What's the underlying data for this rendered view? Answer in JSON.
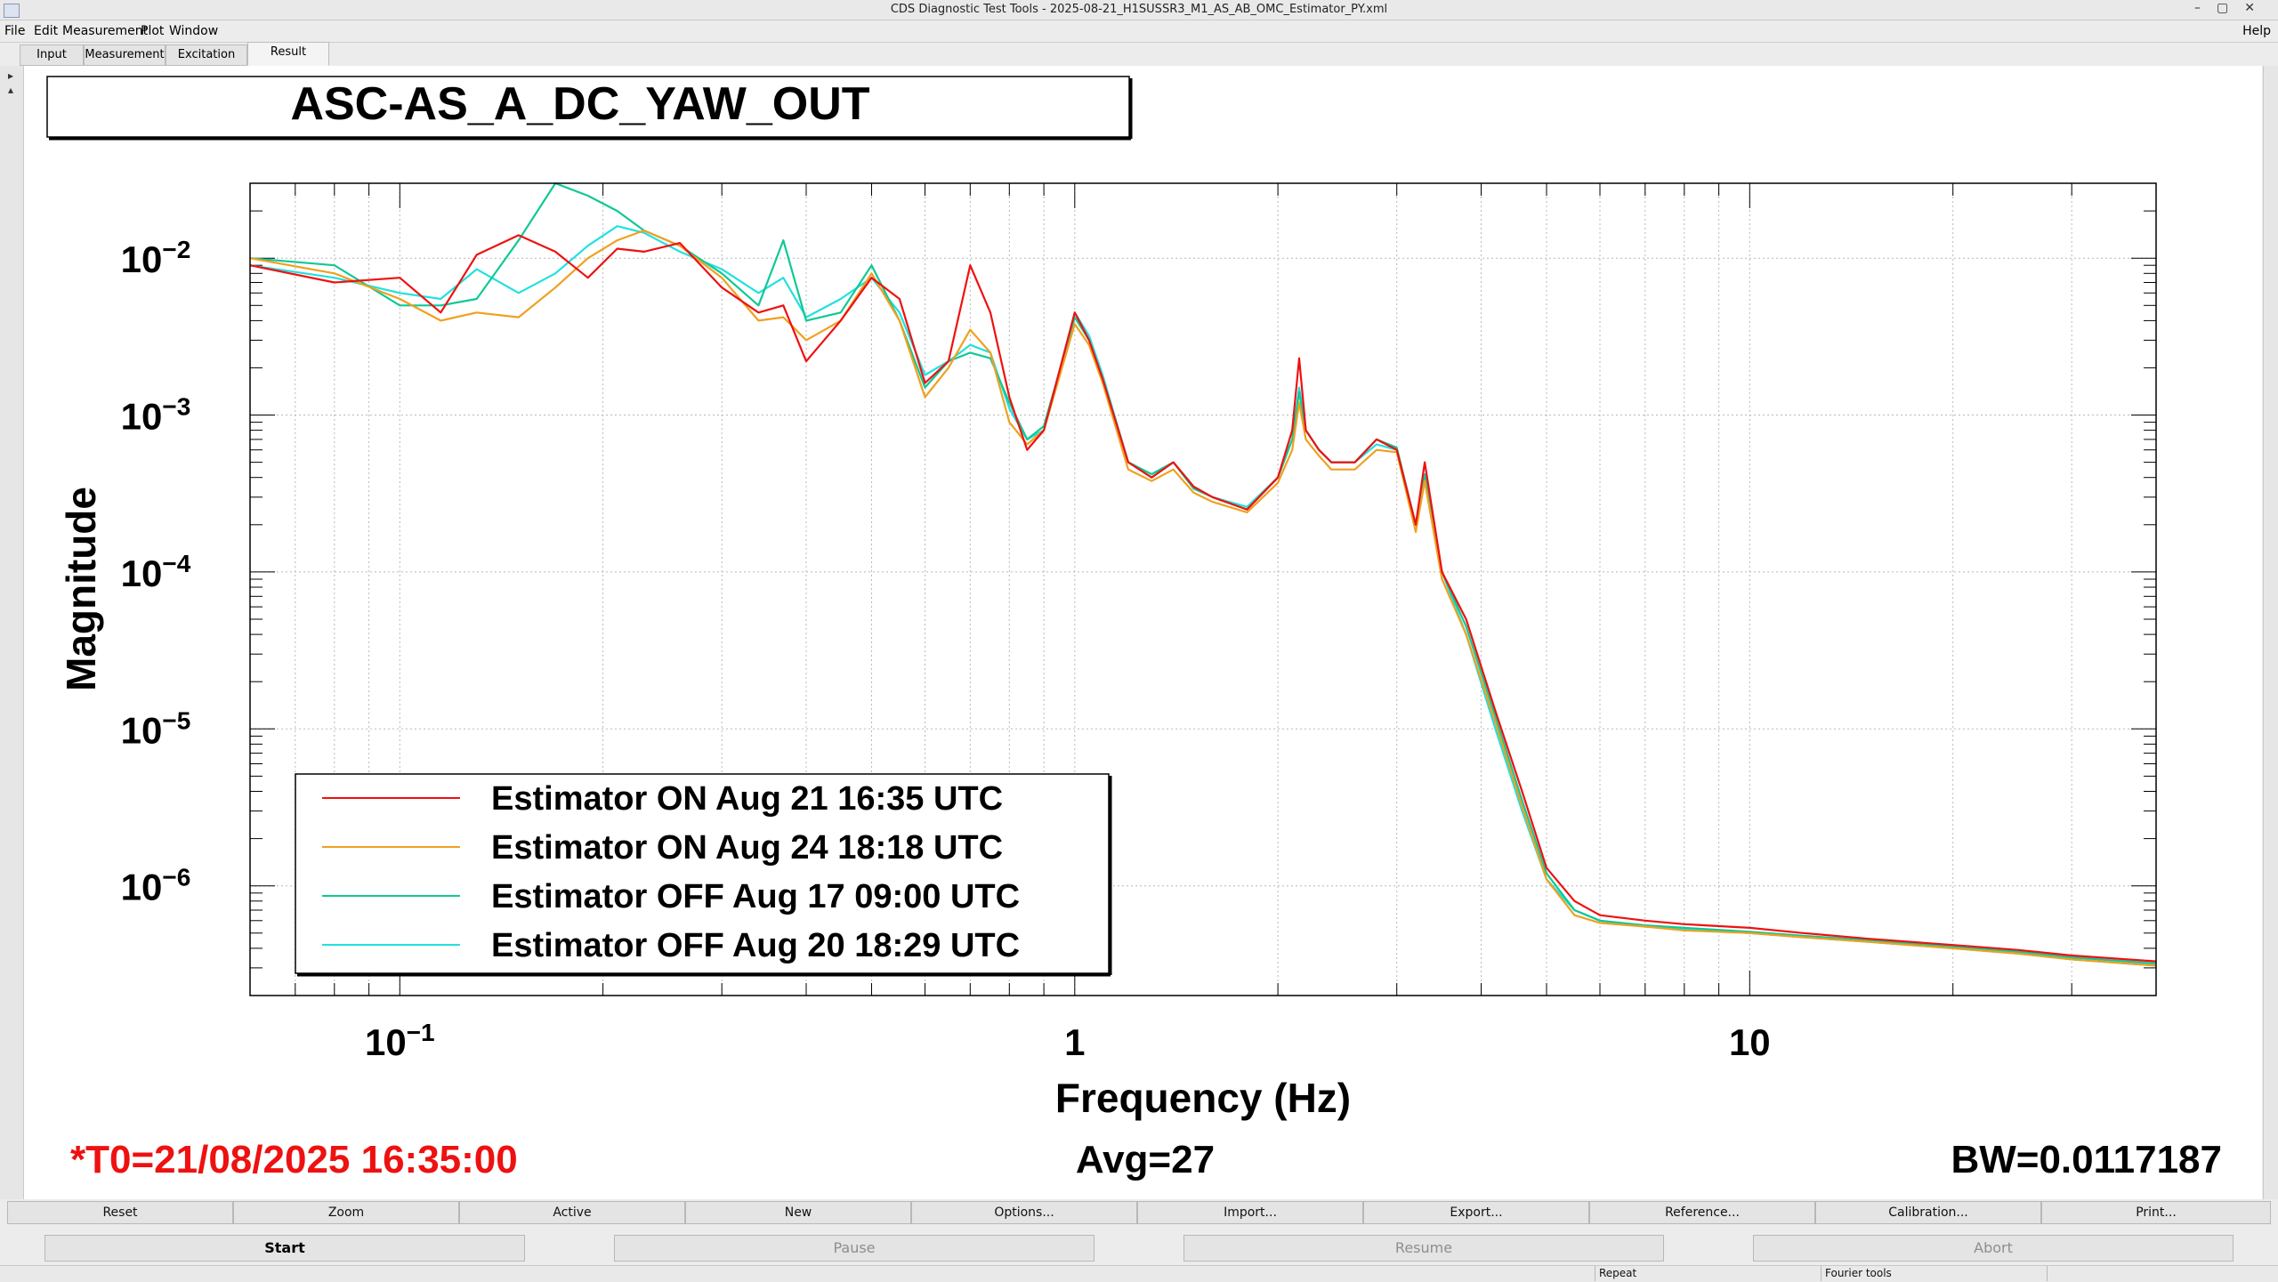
{
  "window": {
    "title": "CDS Diagnostic Test Tools - 2025-08-21_H1SUSSR3_M1_AS_AB_OMC_Estimator_PY.xml",
    "controls": [
      "–",
      "▢",
      "✕"
    ]
  },
  "menu": {
    "file": "File",
    "edit": "Edit",
    "measurement": "Measurement",
    "plot": "Plot",
    "window": "Window",
    "help": "Help"
  },
  "tabs": {
    "input": "Input",
    "measurement": "Measurement",
    "excitation": "Excitation",
    "result": "Result"
  },
  "plot": {
    "title": "ASC-AS_A_DC_YAW_OUT",
    "ylabel": "Magnitude",
    "xlabel": "Frequency (Hz)",
    "t0": "*T0=21/08/2025 16:35:00",
    "avg": "Avg=27",
    "bw": "BW=0.0117187",
    "t0_color": "#ee1111"
  },
  "chart_data": {
    "type": "line",
    "xscale": "log",
    "yscale": "log",
    "xlim": [
      0.06,
      40
    ],
    "ylim": [
      2e-07,
      0.03
    ],
    "grid": true,
    "legend_position": "bottom-left",
    "x_ticks": [
      {
        "value": 0.1,
        "base": "10",
        "exp": "−1"
      },
      {
        "value": 1,
        "base": "1",
        "exp": ""
      },
      {
        "value": 10,
        "base": "10",
        "exp": ""
      }
    ],
    "y_ticks": [
      {
        "value": 0.01,
        "base": "10",
        "exp": "−2"
      },
      {
        "value": 0.001,
        "base": "10",
        "exp": "−3"
      },
      {
        "value": 0.0001,
        "base": "10",
        "exp": "−4"
      },
      {
        "value": 1e-05,
        "base": "10",
        "exp": "−5"
      },
      {
        "value": 1e-06,
        "base": "10",
        "exp": "−6"
      }
    ],
    "series": [
      {
        "name": "Estimator OFF Aug 20 18:29 UTC",
        "color": "#22e0e0",
        "x": [
          0.06,
          0.08,
          0.1,
          0.115,
          0.13,
          0.15,
          0.17,
          0.19,
          0.21,
          0.23,
          0.26,
          0.3,
          0.34,
          0.37,
          0.4,
          0.45,
          0.5,
          0.55,
          0.6,
          0.65,
          0.7,
          0.75,
          0.8,
          0.85,
          0.9,
          1.0,
          1.05,
          1.1,
          1.2,
          1.3,
          1.4,
          1.5,
          1.6,
          1.8,
          2.0,
          2.1,
          2.15,
          2.2,
          2.3,
          2.4,
          2.6,
          2.8,
          3.0,
          3.2,
          3.3,
          3.5,
          3.8,
          4.2,
          4.6,
          5.0,
          5.5,
          6.0,
          7,
          8,
          10,
          12,
          15,
          20,
          25,
          30,
          40
        ],
        "y": [
          0.009,
          0.0075,
          0.006,
          0.0055,
          0.0085,
          0.006,
          0.008,
          0.012,
          0.016,
          0.0145,
          0.011,
          0.0085,
          0.006,
          0.0075,
          0.0042,
          0.0055,
          0.0075,
          0.0045,
          0.0018,
          0.0022,
          0.0028,
          0.0025,
          0.0011,
          0.0007,
          0.0008,
          0.0045,
          0.0032,
          0.0018,
          0.0005,
          0.0004,
          0.0005,
          0.00035,
          0.0003,
          0.00026,
          0.0004,
          0.0007,
          0.0015,
          0.0008,
          0.0006,
          0.0005,
          0.0005,
          0.00065,
          0.0006,
          0.0002,
          0.0004,
          0.0001,
          4e-05,
          1e-05,
          3e-06,
          1.1e-06,
          7e-07,
          6e-07,
          5.5e-07,
          5.3e-07,
          5e-07,
          4.7e-07,
          4.4e-07,
          4e-07,
          3.7e-07,
          3.4e-07,
          3.1e-07
        ]
      },
      {
        "name": "Estimator OFF Aug 17 09:00 UTC",
        "color": "#10c896",
        "x": [
          0.06,
          0.08,
          0.1,
          0.115,
          0.13,
          0.15,
          0.17,
          0.19,
          0.21,
          0.23,
          0.26,
          0.3,
          0.34,
          0.37,
          0.4,
          0.45,
          0.5,
          0.55,
          0.6,
          0.65,
          0.7,
          0.75,
          0.8,
          0.85,
          0.9,
          1.0,
          1.05,
          1.1,
          1.2,
          1.3,
          1.4,
          1.5,
          1.6,
          1.8,
          2.0,
          2.1,
          2.15,
          2.2,
          2.3,
          2.4,
          2.6,
          2.8,
          3.0,
          3.2,
          3.3,
          3.5,
          3.8,
          4.2,
          4.6,
          5.0,
          5.5,
          6.0,
          7,
          8,
          10,
          12,
          15,
          20,
          25,
          30,
          40
        ],
        "y": [
          0.01,
          0.009,
          0.005,
          0.005,
          0.0055,
          0.013,
          0.03,
          0.025,
          0.02,
          0.015,
          0.012,
          0.008,
          0.005,
          0.013,
          0.004,
          0.0045,
          0.009,
          0.004,
          0.0015,
          0.0022,
          0.0025,
          0.0023,
          0.0012,
          0.0007,
          0.00085,
          0.0042,
          0.003,
          0.0017,
          0.0005,
          0.00042,
          0.0005,
          0.00034,
          0.0003,
          0.00025,
          0.0004,
          0.0007,
          0.0014,
          0.0008,
          0.0006,
          0.0005,
          0.0005,
          0.0007,
          0.00062,
          0.0002,
          0.00042,
          0.0001,
          4.5e-05,
          1.2e-05,
          3.5e-06,
          1.2e-06,
          7e-07,
          6e-07,
          5.6e-07,
          5.4e-07,
          5.1e-07,
          4.8e-07,
          4.5e-07,
          4.1e-07,
          3.8e-07,
          3.5e-07,
          3.2e-07
        ]
      },
      {
        "name": "Estimator ON Aug 24 18:18 UTC",
        "color": "#f0a020",
        "x": [
          0.06,
          0.08,
          0.1,
          0.115,
          0.13,
          0.15,
          0.17,
          0.19,
          0.21,
          0.23,
          0.26,
          0.3,
          0.34,
          0.37,
          0.4,
          0.45,
          0.5,
          0.55,
          0.6,
          0.65,
          0.7,
          0.75,
          0.8,
          0.85,
          0.9,
          1.0,
          1.05,
          1.1,
          1.2,
          1.3,
          1.4,
          1.5,
          1.6,
          1.8,
          2.0,
          2.1,
          2.15,
          2.2,
          2.3,
          2.4,
          2.6,
          2.8,
          3.0,
          3.2,
          3.3,
          3.5,
          3.8,
          4.2,
          4.6,
          5.0,
          5.5,
          6.0,
          7,
          8,
          10,
          12,
          15,
          20,
          25,
          30,
          40
        ],
        "y": [
          0.01,
          0.008,
          0.0055,
          0.004,
          0.0045,
          0.0042,
          0.0065,
          0.01,
          0.013,
          0.015,
          0.012,
          0.0075,
          0.004,
          0.0042,
          0.003,
          0.004,
          0.008,
          0.004,
          0.0013,
          0.002,
          0.0035,
          0.0025,
          0.0009,
          0.00065,
          0.0008,
          0.0038,
          0.0028,
          0.0016,
          0.00045,
          0.00038,
          0.00045,
          0.00032,
          0.00028,
          0.00024,
          0.00037,
          0.0006,
          0.0012,
          0.0007,
          0.00055,
          0.00045,
          0.00045,
          0.0006,
          0.00058,
          0.00018,
          0.00038,
          9e-05,
          4e-05,
          1.1e-05,
          3.2e-06,
          1.1e-06,
          6.5e-07,
          5.8e-07,
          5.5e-07,
          5.2e-07,
          5e-07,
          4.7e-07,
          4.4e-07,
          4e-07,
          3.7e-07,
          3.4e-07,
          3.1e-07
        ]
      },
      {
        "name": "Estimator ON Aug 21 16:35 UTC",
        "color": "#ee1111",
        "x": [
          0.06,
          0.08,
          0.1,
          0.115,
          0.13,
          0.15,
          0.17,
          0.19,
          0.21,
          0.23,
          0.26,
          0.3,
          0.34,
          0.37,
          0.4,
          0.45,
          0.5,
          0.55,
          0.6,
          0.65,
          0.7,
          0.75,
          0.8,
          0.85,
          0.9,
          1.0,
          1.05,
          1.1,
          1.2,
          1.3,
          1.4,
          1.5,
          1.6,
          1.8,
          2.0,
          2.1,
          2.15,
          2.2,
          2.3,
          2.4,
          2.6,
          2.8,
          3.0,
          3.2,
          3.3,
          3.5,
          3.8,
          4.2,
          4.6,
          5.0,
          5.5,
          6.0,
          7,
          8,
          10,
          12,
          15,
          20,
          25,
          30,
          40
        ],
        "y": [
          0.009,
          0.007,
          0.0075,
          0.0045,
          0.0105,
          0.014,
          0.011,
          0.0075,
          0.0115,
          0.011,
          0.0125,
          0.0065,
          0.0045,
          0.005,
          0.0022,
          0.004,
          0.0075,
          0.0055,
          0.0016,
          0.0022,
          0.009,
          0.0045,
          0.0013,
          0.0006,
          0.0008,
          0.0045,
          0.003,
          0.0017,
          0.0005,
          0.0004,
          0.0005,
          0.00035,
          0.0003,
          0.00025,
          0.0004,
          0.0008,
          0.0023,
          0.0008,
          0.0006,
          0.0005,
          0.0005,
          0.0007,
          0.0006,
          0.0002,
          0.0005,
          0.0001,
          5e-05,
          1.3e-05,
          4e-06,
          1.3e-06,
          8e-07,
          6.5e-07,
          6e-07,
          5.7e-07,
          5.4e-07,
          5e-07,
          4.6e-07,
          4.2e-07,
          3.9e-07,
          3.6e-07,
          3.3e-07
        ]
      }
    ]
  },
  "buttons": {
    "reset": "Reset",
    "zoom": "Zoom",
    "active": "Active",
    "new": "New",
    "options": "Options...",
    "import": "Import...",
    "export": "Export...",
    "reference": "Reference...",
    "calibration": "Calibration...",
    "print": "Print..."
  },
  "controls": {
    "start": "Start",
    "pause": "Pause",
    "resume": "Resume",
    "abort": "Abort"
  },
  "status": {
    "repeat": "Repeat",
    "fourier": "Fourier tools"
  }
}
